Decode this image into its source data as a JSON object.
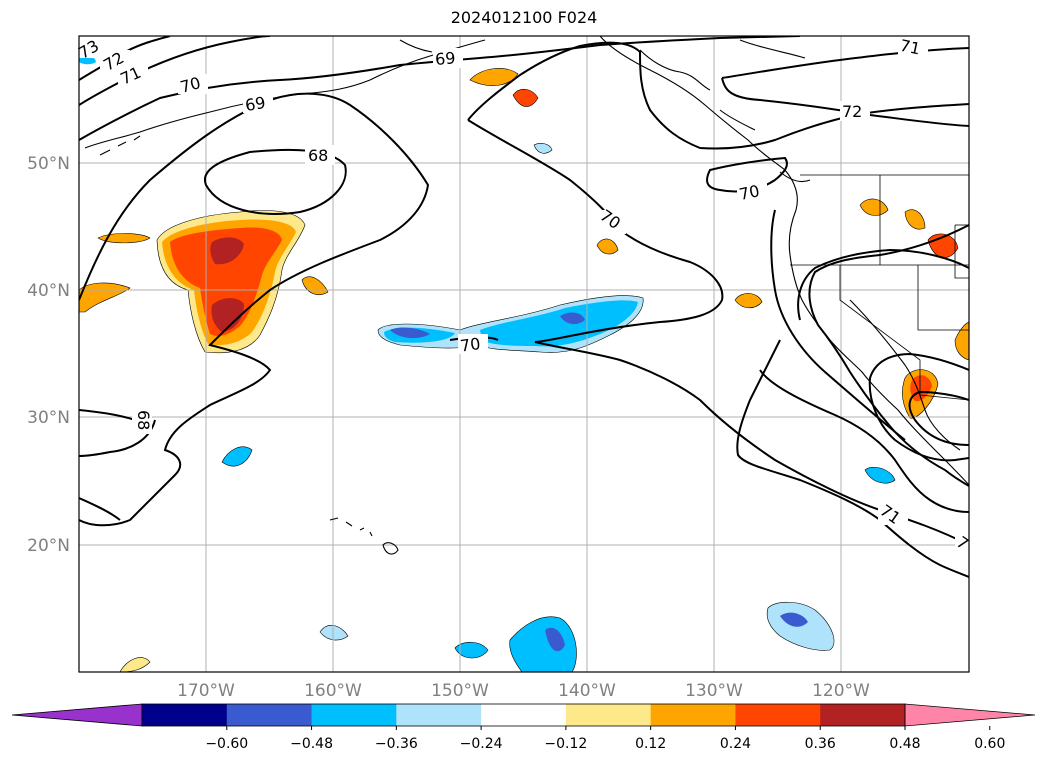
{
  "title": "2024012100 F024",
  "lon_labels": [
    "170°W",
    "160°W",
    "150°W",
    "140°W",
    "130°W",
    "120°W"
  ],
  "lat_labels": [
    "50°N",
    "40°N",
    "30°N",
    "20°N"
  ],
  "contour_labels": [
    "73",
    "72",
    "71",
    "70",
    "69",
    "68",
    "69",
    "70",
    "70",
    "70",
    "71",
    "72",
    "70",
    "71",
    "68",
    "7"
  ],
  "colorbar": {
    "ticks": [
      "−0.60",
      "−0.48",
      "−0.36",
      "−0.24",
      "−0.12",
      "0.12",
      "0.24",
      "0.36",
      "0.48",
      "0.60"
    ],
    "colors": [
      "#9932cc",
      "#00008b",
      "#3a5bd0",
      "#00bfff",
      "#aee3fb",
      "#ffffff",
      "#fde98a",
      "#ffa500",
      "#ff4500",
      "#b22222",
      "#ff85a8"
    ]
  },
  "legend_colors": {
    "neg_light": "#aee3fb",
    "neg_mid": "#00bfff",
    "neg_strong": "#3a5bd0",
    "pos_light": "#fde98a",
    "pos_mid": "#ffa500",
    "pos_strong": "#ff4500",
    "pos_max": "#b22222"
  }
}
